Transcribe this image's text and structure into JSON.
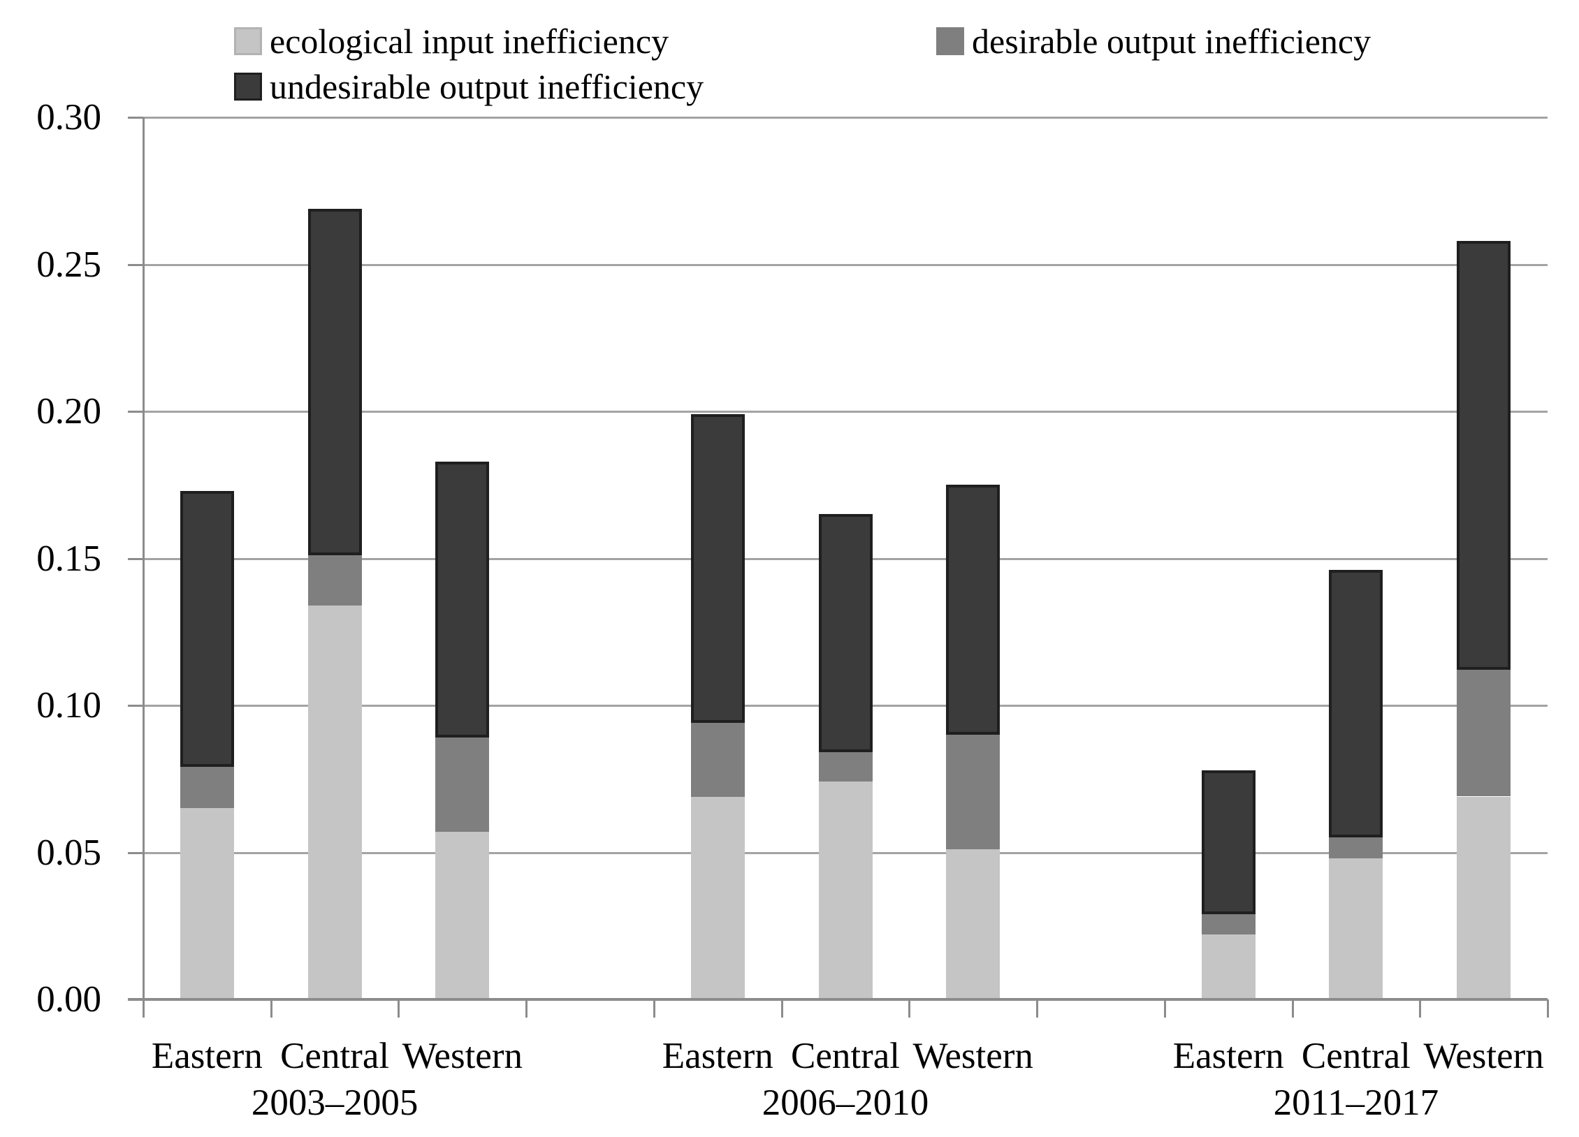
{
  "legend": {
    "items": [
      {
        "id": "ecological",
        "label": "ecological input inefficiency",
        "color": "#c5c5c5",
        "border": "#b2b2b2"
      },
      {
        "id": "desirable",
        "label": "desirable output inefficiency",
        "color": "#7f7f7f",
        "border": "#7f7f7f"
      },
      {
        "id": "undesirable",
        "label": "undesirable output inefficiency",
        "color": "#3b3b3b",
        "border": "#1f1f1f"
      }
    ]
  },
  "chart_data": {
    "type": "bar",
    "stacked": true,
    "title": "",
    "xlabel": "",
    "ylabel": "",
    "ylim": [
      0,
      0.3
    ],
    "ytick_step": 0.05,
    "yticks": [
      "0.00",
      "0.05",
      "0.10",
      "0.15",
      "0.20",
      "0.25",
      "0.30"
    ],
    "grid": true,
    "legend_position": "top",
    "groups": [
      {
        "label": "2003–2005",
        "categories": [
          "Eastern",
          "Central",
          "Western"
        ]
      },
      {
        "label": "2006–2010",
        "categories": [
          "Eastern",
          "Central",
          "Western"
        ]
      },
      {
        "label": "2011–2017",
        "categories": [
          "Eastern",
          "Central",
          "Western"
        ]
      }
    ],
    "categories": [
      "Eastern",
      "Central",
      "Western",
      "Eastern",
      "Central",
      "Western",
      "Eastern",
      "Central",
      "Western"
    ],
    "series": [
      {
        "name": "ecological input inefficiency",
        "color": "#c5c5c5",
        "values": [
          0.065,
          0.134,
          0.057,
          0.069,
          0.074,
          0.051,
          0.022,
          0.048,
          0.069
        ]
      },
      {
        "name": "desirable output inefficiency",
        "color": "#7f7f7f",
        "values": [
          0.014,
          0.017,
          0.032,
          0.025,
          0.01,
          0.039,
          0.007,
          0.007,
          0.043
        ]
      },
      {
        "name": "undesirable output inefficiency",
        "color": "#3b3b3b",
        "values": [
          0.094,
          0.118,
          0.094,
          0.105,
          0.081,
          0.085,
          0.049,
          0.091,
          0.146
        ]
      }
    ],
    "totals": [
      0.173,
      0.269,
      0.183,
      0.199,
      0.165,
      0.175,
      0.078,
      0.146,
      0.258
    ],
    "colors": {
      "gridline": "#a3a3a3",
      "axis": "#8c8c8c",
      "bar_outline": "#1f1f1f",
      "background": "#ffffff",
      "text": "#000000"
    }
  }
}
